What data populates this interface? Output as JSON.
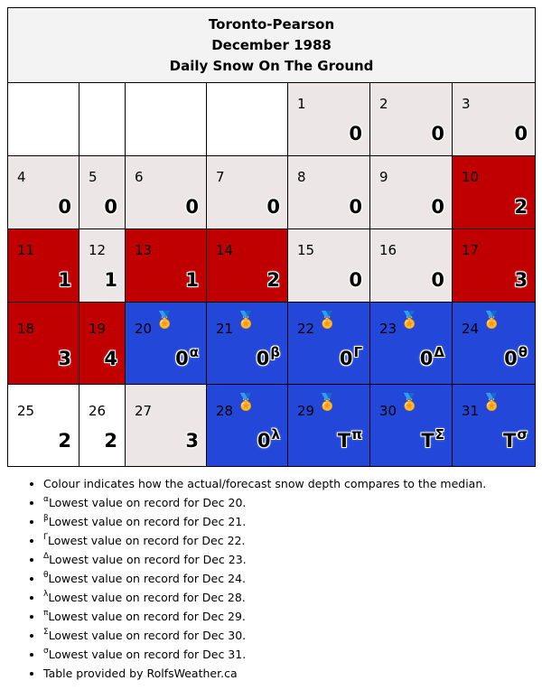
{
  "header": {
    "station": "Toronto-Pearson",
    "period": "December 1988",
    "metric": "Daily Snow On The Ground"
  },
  "colors": {
    "white": "#ffffff",
    "light": "#ede6e6",
    "red": "#c00000",
    "blue": "#2347d8",
    "lavender": "#bdbbea"
  },
  "weeks": [
    {
      "days": [
        {
          "empty": true
        },
        {
          "empty": true
        },
        {
          "empty": true
        },
        {
          "empty": true
        },
        {
          "day": "1",
          "value": "0",
          "color": "light"
        },
        {
          "day": "2",
          "value": "0",
          "color": "light"
        },
        {
          "day": "3",
          "value": "0",
          "color": "light"
        }
      ]
    },
    {
      "days": [
        {
          "day": "4",
          "value": "0",
          "color": "light"
        },
        {
          "day": "5",
          "value": "0",
          "color": "light"
        },
        {
          "day": "6",
          "value": "0",
          "color": "light"
        },
        {
          "day": "7",
          "value": "0",
          "color": "light"
        },
        {
          "day": "8",
          "value": "0",
          "color": "light"
        },
        {
          "day": "9",
          "value": "0",
          "color": "light"
        },
        {
          "day": "10",
          "value": "2",
          "color": "red"
        }
      ]
    },
    {
      "days": [
        {
          "day": "11",
          "value": "1",
          "color": "red"
        },
        {
          "day": "12",
          "value": "1",
          "color": "light"
        },
        {
          "day": "13",
          "value": "1",
          "color": "red"
        },
        {
          "day": "14",
          "value": "2",
          "color": "red"
        },
        {
          "day": "15",
          "value": "0",
          "color": "light"
        },
        {
          "day": "16",
          "value": "0",
          "color": "light"
        },
        {
          "day": "17",
          "value": "3",
          "color": "red"
        }
      ]
    },
    {
      "days": [
        {
          "day": "18",
          "value": "3",
          "color": "red"
        },
        {
          "day": "19",
          "value": "4",
          "color": "red"
        },
        {
          "day": "20",
          "value": "0",
          "sup": "α",
          "medal": "🏅",
          "color": "blue"
        },
        {
          "day": "21",
          "value": "0",
          "sup": "β",
          "medal": "🏅",
          "color": "blue"
        },
        {
          "day": "22",
          "value": "0",
          "sup": "Γ",
          "medal": "🏅",
          "color": "blue"
        },
        {
          "day": "23",
          "value": "0",
          "sup": "Δ",
          "medal": "🏅",
          "color": "blue"
        },
        {
          "day": "24",
          "value": "0",
          "sup": "θ",
          "medal": "🏅",
          "color": "blue"
        }
      ]
    },
    {
      "days": [
        {
          "day": "25",
          "value": "2",
          "color": "lavender"
        },
        {
          "day": "26",
          "value": "2",
          "color": "lavender"
        },
        {
          "day": "27",
          "value": "3",
          "color": "light"
        },
        {
          "day": "28",
          "value": "0",
          "sup": "λ",
          "medal": "🏅",
          "color": "blue"
        },
        {
          "day": "29",
          "value": "T",
          "sup": "π",
          "medal": "🏅",
          "color": "blue"
        },
        {
          "day": "30",
          "value": "T",
          "sup": "Σ",
          "medal": "🏅",
          "color": "blue"
        },
        {
          "day": "31",
          "value": "T",
          "sup": "σ",
          "medal": "🏅",
          "color": "blue"
        }
      ]
    }
  ],
  "notes": [
    {
      "sup": "",
      "text": "Colour indicates how the actual/forecast snow depth compares to the median."
    },
    {
      "sup": "α",
      "text": "Lowest value on record for Dec 20."
    },
    {
      "sup": "β",
      "text": "Lowest value on record for Dec 21."
    },
    {
      "sup": "Γ",
      "text": "Lowest value on record for Dec 22."
    },
    {
      "sup": "Δ",
      "text": "Lowest value on record for Dec 23."
    },
    {
      "sup": "θ",
      "text": "Lowest value on record for Dec 24."
    },
    {
      "sup": "λ",
      "text": "Lowest value on record for Dec 28."
    },
    {
      "sup": "π",
      "text": "Lowest value on record for Dec 29."
    },
    {
      "sup": "Σ",
      "text": "Lowest value on record for Dec 30."
    },
    {
      "sup": "σ",
      "text": "Lowest value on record for Dec 31."
    },
    {
      "sup": "",
      "text": "Table provided by RolfsWeather.ca"
    }
  ]
}
